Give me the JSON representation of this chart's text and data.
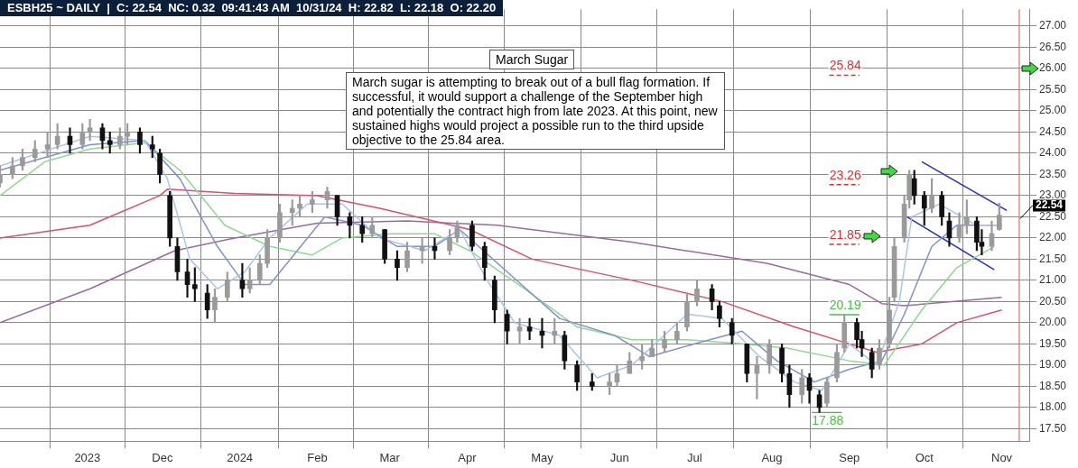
{
  "chart_data": {
    "type": "candlestick",
    "title": "March Sugar",
    "subtitle": "ESBH25 ~ DAILY  |  C: 22.54  NC: 0.32  09:41:43 AM  10/31/24  H: 22.82  L: 22.18  O: 22.20",
    "x": [
      "2023-09-27",
      "2023-10-02",
      "2023-10-06",
      "2023-10-11",
      "2023-10-16",
      "2023-10-20",
      "2023-10-25",
      "2023-10-30",
      "2023-11-02",
      "2023-11-07",
      "2023-11-10",
      "2023-11-14",
      "2023-11-17",
      "2023-11-22",
      "2023-11-27",
      "2023-11-30",
      "2023-12-04",
      "2023-12-07",
      "2023-12-11",
      "2023-12-14",
      "2023-12-19",
      "2023-12-22",
      "2023-12-27",
      "2024-01-02",
      "2024-01-05",
      "2024-01-09",
      "2024-01-12",
      "2024-01-17",
      "2024-01-22",
      "2024-01-25",
      "2024-01-30",
      "2024-02-05",
      "2024-02-09",
      "2024-02-14",
      "2024-02-19",
      "2024-02-23",
      "2024-02-28",
      "2024-03-04",
      "2024-03-08",
      "2024-03-14",
      "2024-03-19",
      "2024-03-25",
      "2024-03-28",
      "2024-04-03",
      "2024-04-08",
      "2024-04-12",
      "2024-04-17",
      "2024-04-22",
      "2024-04-26",
      "2024-05-01",
      "2024-05-06",
      "2024-05-10",
      "2024-05-15",
      "2024-05-21",
      "2024-05-28",
      "2024-05-31",
      "2024-06-05",
      "2024-06-10",
      "2024-06-14",
      "2024-06-19",
      "2024-06-24",
      "2024-06-28",
      "2024-07-02",
      "2024-07-08",
      "2024-07-11",
      "2024-07-16",
      "2024-07-22",
      "2024-07-26",
      "2024-07-31",
      "2024-08-05",
      "2024-08-08",
      "2024-08-13",
      "2024-08-16",
      "2024-08-20",
      "2024-08-23",
      "2024-08-27",
      "2024-08-30",
      "2024-09-04",
      "2024-09-06",
      "2024-09-10",
      "2024-09-13",
      "2024-09-17",
      "2024-09-19",
      "2024-09-23",
      "2024-09-25",
      "2024-09-27",
      "2024-10-01",
      "2024-10-04",
      "2024-10-08",
      "2024-10-11",
      "2024-10-15",
      "2024-10-18",
      "2024-10-22",
      "2024-10-24",
      "2024-10-28",
      "2024-10-31"
    ],
    "ohlc": [
      [
        23.3,
        23.7,
        23.2,
        23.5
      ],
      [
        23.5,
        23.9,
        23.4,
        23.7
      ],
      [
        23.7,
        24.1,
        23.6,
        23.9
      ],
      [
        23.9,
        24.3,
        23.8,
        24.1
      ],
      [
        24.1,
        24.5,
        23.9,
        24.2
      ],
      [
        24.2,
        24.7,
        24.1,
        24.4
      ],
      [
        24.4,
        24.6,
        24.0,
        24.2
      ],
      [
        24.2,
        24.7,
        24.1,
        24.5
      ],
      [
        24.5,
        24.8,
        24.3,
        24.6
      ],
      [
        24.6,
        24.7,
        24.1,
        24.3
      ],
      [
        24.3,
        24.5,
        24.0,
        24.2
      ],
      [
        24.2,
        24.6,
        24.1,
        24.4
      ],
      [
        24.4,
        24.7,
        24.2,
        24.5
      ],
      [
        24.5,
        24.6,
        24.0,
        24.2
      ],
      [
        24.2,
        24.4,
        23.9,
        24.1
      ],
      [
        24.0,
        24.1,
        23.3,
        23.5
      ],
      [
        23.0,
        23.1,
        21.8,
        22.0
      ],
      [
        21.8,
        22.0,
        21.0,
        21.2
      ],
      [
        21.2,
        21.5,
        20.6,
        20.9
      ],
      [
        20.9,
        21.3,
        20.5,
        20.8
      ],
      [
        20.7,
        20.9,
        20.1,
        20.3
      ],
      [
        20.3,
        20.8,
        20.0,
        20.6
      ],
      [
        20.6,
        21.2,
        20.5,
        21.0
      ],
      [
        21.0,
        21.4,
        20.6,
        20.8
      ],
      [
        20.8,
        21.3,
        20.7,
        21.0
      ],
      [
        21.0,
        21.6,
        20.9,
        21.4
      ],
      [
        21.4,
        22.2,
        21.3,
        22.0
      ],
      [
        22.0,
        22.8,
        21.9,
        22.6
      ],
      [
        22.6,
        22.9,
        22.3,
        22.7
      ],
      [
        22.7,
        23.0,
        22.5,
        22.8
      ],
      [
        22.8,
        23.1,
        22.6,
        22.9
      ],
      [
        22.9,
        23.2,
        22.7,
        23.1
      ],
      [
        23.0,
        23.0,
        22.3,
        22.5
      ],
      [
        22.5,
        22.6,
        22.0,
        22.3
      ],
      [
        22.3,
        22.5,
        21.9,
        22.1
      ],
      [
        22.1,
        22.5,
        22.0,
        22.3
      ],
      [
        22.2,
        22.2,
        21.4,
        21.5
      ],
      [
        21.5,
        21.7,
        21.0,
        21.3
      ],
      [
        21.3,
        21.9,
        21.2,
        21.7
      ],
      [
        21.7,
        22.0,
        21.4,
        21.8
      ],
      [
        21.8,
        22.0,
        21.5,
        21.7
      ],
      [
        21.7,
        22.2,
        21.6,
        22.0
      ],
      [
        22.0,
        22.4,
        21.9,
        22.3
      ],
      [
        22.3,
        22.4,
        21.7,
        21.8
      ],
      [
        21.8,
        21.9,
        21.0,
        21.3
      ],
      [
        21.0,
        21.1,
        20.0,
        20.3
      ],
      [
        20.2,
        20.3,
        19.5,
        19.8
      ],
      [
        19.8,
        20.1,
        19.5,
        19.9
      ],
      [
        19.9,
        20.1,
        19.6,
        19.8
      ],
      [
        19.8,
        20.1,
        19.4,
        19.7
      ],
      [
        19.7,
        20.1,
        19.5,
        19.8
      ],
      [
        19.7,
        19.8,
        18.9,
        19.1
      ],
      [
        19.0,
        19.1,
        18.4,
        18.6
      ],
      [
        18.6,
        18.8,
        18.4,
        18.5
      ],
      [
        18.5,
        18.8,
        18.3,
        18.6
      ],
      [
        18.6,
        19.0,
        18.5,
        18.8
      ],
      [
        18.8,
        19.3,
        18.8,
        19.1
      ],
      [
        19.1,
        19.5,
        18.9,
        19.2
      ],
      [
        19.2,
        19.6,
        19.2,
        19.4
      ],
      [
        19.4,
        19.8,
        19.3,
        19.6
      ],
      [
        19.6,
        20.0,
        19.5,
        19.8
      ],
      [
        19.9,
        20.7,
        19.8,
        20.5
      ],
      [
        20.5,
        21.0,
        20.4,
        20.8
      ],
      [
        20.8,
        20.9,
        20.3,
        20.5
      ],
      [
        20.4,
        20.5,
        19.9,
        20.1
      ],
      [
        20.0,
        20.1,
        19.5,
        19.7
      ],
      [
        19.5,
        19.5,
        18.6,
        18.8
      ],
      [
        18.8,
        19.2,
        18.2,
        19.0
      ],
      [
        19.0,
        19.6,
        18.8,
        19.5
      ],
      [
        19.4,
        19.5,
        18.6,
        18.8
      ],
      [
        18.8,
        19.0,
        18.0,
        18.3
      ],
      [
        18.3,
        18.9,
        18.1,
        18.7
      ],
      [
        18.7,
        18.8,
        18.1,
        18.4
      ],
      [
        18.3,
        18.4,
        17.88,
        18.0
      ],
      [
        18.1,
        18.7,
        18.0,
        18.6
      ],
      [
        18.7,
        19.5,
        18.6,
        19.3
      ],
      [
        19.4,
        20.19,
        19.3,
        20.0
      ],
      [
        20.0,
        20.1,
        19.4,
        19.6
      ],
      [
        19.6,
        19.8,
        19.2,
        19.4
      ],
      [
        19.3,
        19.4,
        18.7,
        18.9
      ],
      [
        19.0,
        19.6,
        18.9,
        19.4
      ],
      [
        19.5,
        20.6,
        19.4,
        20.3
      ],
      [
        20.6,
        22.0,
        20.5,
        21.8
      ],
      [
        22.0,
        23.0,
        21.9,
        22.8
      ],
      [
        22.9,
        23.6,
        22.7,
        23.5
      ],
      [
        23.4,
        23.6,
        22.8,
        23.0
      ],
      [
        23.0,
        23.1,
        22.3,
        22.7
      ],
      [
        22.7,
        23.4,
        22.6,
        23.0
      ],
      [
        23.0,
        23.1,
        22.3,
        22.5
      ],
      [
        22.4,
        22.6,
        21.8,
        22.0
      ],
      [
        22.0,
        22.6,
        21.9,
        22.3
      ],
      [
        22.3,
        22.9,
        22.1,
        22.5
      ],
      [
        22.4,
        22.5,
        21.7,
        21.9
      ],
      [
        21.9,
        22.2,
        21.6,
        21.8
      ],
      [
        21.8,
        22.4,
        21.7,
        22.1
      ],
      [
        22.2,
        22.82,
        22.18,
        22.54
      ]
    ],
    "colors": [
      "#9a9a9a",
      "#9a9a9a",
      "#9a9a9a",
      "#9a9a9a",
      "#9a9a9a",
      "#9a9a9a",
      "#111111",
      "#9a9a9a",
      "#9a9a9a",
      "#111111",
      "#111111",
      "#9a9a9a",
      "#9a9a9a",
      "#111111",
      "#111111",
      "#111111",
      "#111111",
      "#111111",
      "#111111",
      "#111111",
      "#111111",
      "#9a9a9a",
      "#9a9a9a",
      "#111111",
      "#9a9a9a",
      "#9a9a9a",
      "#9a9a9a",
      "#9a9a9a",
      "#9a9a9a",
      "#9a9a9a",
      "#9a9a9a",
      "#9a9a9a",
      "#111111",
      "#111111",
      "#111111",
      "#9a9a9a",
      "#111111",
      "#111111",
      "#9a9a9a",
      "#9a9a9a",
      "#111111",
      "#9a9a9a",
      "#9a9a9a",
      "#111111",
      "#111111",
      "#111111",
      "#111111",
      "#9a9a9a",
      "#111111",
      "#111111",
      "#9a9a9a",
      "#111111",
      "#111111",
      "#111111",
      "#9a9a9a",
      "#9a9a9a",
      "#9a9a9a",
      "#9a9a9a",
      "#9a9a9a",
      "#9a9a9a",
      "#9a9a9a",
      "#9a9a9a",
      "#9a9a9a",
      "#111111",
      "#111111",
      "#111111",
      "#111111",
      "#9a9a9a",
      "#9a9a9a",
      "#111111",
      "#111111",
      "#9a9a9a",
      "#111111",
      "#111111",
      "#9a9a9a",
      "#9a9a9a",
      "#9a9a9a",
      "#111111",
      "#111111",
      "#111111",
      "#9a9a9a",
      "#9a9a9a",
      "#9a9a9a",
      "#9a9a9a",
      "#9a9a9a",
      "#111111",
      "#111111",
      "#9a9a9a",
      "#111111",
      "#111111",
      "#9a9a9a",
      "#9a9a9a",
      "#111111",
      "#111111",
      "#9a9a9a",
      "#9a9a9a"
    ],
    "series": [
      {
        "type": "line",
        "color": "#a9c4e8",
        "x": [
          "2023-09-27",
          "2023-11-02",
          "2023-11-24",
          "2023-12-03",
          "2023-12-12",
          "2023-12-23",
          "2024-01-03",
          "2024-01-13",
          "2024-01-28",
          "2024-02-11",
          "2024-02-26",
          "2024-03-15",
          "2024-03-29",
          "2024-04-09",
          "2024-04-20",
          "2024-05-08",
          "2024-05-23",
          "2024-06-06",
          "2024-06-28",
          "2024-07-12",
          "2024-07-27",
          "2024-08-10",
          "2024-08-21",
          "2024-09-01",
          "2024-09-12",
          "2024-09-21",
          "2024-09-26",
          "2024-10-07",
          "2024-10-22",
          "2024-11-01"
        ],
        "values": [
          23.7,
          24.4,
          24.3,
          23.4,
          21.5,
          20.8,
          21.2,
          22.0,
          22.8,
          22.8,
          22.0,
          21.7,
          22.2,
          21.0,
          20.0,
          19.7,
          18.7,
          19.0,
          20.2,
          20.1,
          19.2,
          18.6,
          18.4,
          19.5,
          19.0,
          20.5,
          22.5,
          22.8,
          22.3,
          22.3
        ]
      },
      {
        "type": "line",
        "color": "#8090d0",
        "x": [
          "2023-09-27",
          "2023-11-02",
          "2023-11-24",
          "2023-12-08",
          "2023-12-23",
          "2024-01-03",
          "2024-01-13",
          "2024-01-24",
          "2024-02-04",
          "2024-02-19",
          "2024-03-04",
          "2024-03-19",
          "2024-03-29",
          "2024-04-17",
          "2024-05-08",
          "2024-05-30",
          "2024-06-13",
          "2024-07-01",
          "2024-07-20",
          "2024-08-03",
          "2024-08-18",
          "2024-09-01",
          "2024-09-14",
          "2024-09-23",
          "2024-10-04",
          "2024-10-14",
          "2024-11-01"
        ],
        "values": [
          23.6,
          24.2,
          24.3,
          23.4,
          21.8,
          20.9,
          20.9,
          21.7,
          22.5,
          22.3,
          21.8,
          21.8,
          22.2,
          21.2,
          20.1,
          19.7,
          19.2,
          19.5,
          19.8,
          19.1,
          18.6,
          18.9,
          19.1,
          20.2,
          21.8,
          22.3,
          22.3
        ]
      },
      {
        "type": "line",
        "color": "#90d890",
        "x": [
          "2023-09-27",
          "2023-10-15",
          "2023-11-02",
          "2023-11-24",
          "2023-12-08",
          "2023-12-26",
          "2024-01-13",
          "2024-01-30",
          "2024-02-11",
          "2024-03-01",
          "2024-03-19",
          "2024-04-02",
          "2024-04-24",
          "2024-05-15",
          "2024-06-06",
          "2024-06-28",
          "2024-07-20",
          "2024-08-07",
          "2024-09-01",
          "2024-09-15",
          "2024-09-30",
          "2024-10-14",
          "2024-10-29"
        ],
        "values": [
          23.0,
          23.8,
          24.1,
          24.25,
          23.6,
          22.3,
          21.8,
          21.6,
          22.0,
          22.1,
          22.1,
          21.7,
          20.8,
          19.9,
          19.6,
          19.6,
          19.5,
          19.4,
          19.1,
          19.0,
          20.3,
          21.3,
          21.8
        ]
      },
      {
        "type": "line",
        "color": "#d9506a",
        "x": [
          "2023-09-27",
          "2023-11-02",
          "2023-11-30",
          "2023-12-03",
          "2023-12-30",
          "2024-02-01",
          "2024-02-26",
          "2024-04-02",
          "2024-04-27",
          "2024-06-06",
          "2024-07-12",
          "2024-08-10",
          "2024-09-01",
          "2024-09-12",
          "2024-09-30",
          "2024-10-14",
          "2024-11-01"
        ],
        "values": [
          22.0,
          22.3,
          23.0,
          23.15,
          23.05,
          23.0,
          22.7,
          22.2,
          21.5,
          21.0,
          20.5,
          19.9,
          19.5,
          19.3,
          19.5,
          20.0,
          20.3
        ]
      },
      {
        "type": "line",
        "color": "#9a6a9e",
        "x": [
          "2023-09-27",
          "2023-11-02",
          "2023-12-06",
          "2023-12-30",
          "2024-02-01",
          "2024-03-08",
          "2024-04-13",
          "2024-06-06",
          "2024-07-30",
          "2024-09-01",
          "2024-09-14",
          "2024-09-23",
          "2024-11-01"
        ],
        "values": [
          20.0,
          20.8,
          21.7,
          22.0,
          22.35,
          22.4,
          22.3,
          21.9,
          21.4,
          20.9,
          20.45,
          20.4,
          20.6
        ]
      },
      {
        "type": "line",
        "color": "#2b2bd0",
        "x": [
          "2024-09-30",
          "2024-11-03"
        ],
        "values": [
          23.8,
          22.65
        ]
      },
      {
        "type": "line",
        "color": "#2b2bd0",
        "x": [
          "2024-09-24",
          "2024-10-29"
        ],
        "values": [
          22.5,
          21.25
        ]
      },
      {
        "type": "line",
        "color": "#e03030",
        "line_style": "dashed",
        "x": [
          "2024-08-24",
          "2024-09-05"
        ],
        "values": [
          25.84,
          25.84
        ],
        "value_labels": [
          "25.84",
          null
        ]
      },
      {
        "type": "line",
        "color": "#e03030",
        "line_style": "dashed",
        "x": [
          "2024-08-24",
          "2024-09-05"
        ],
        "values": [
          23.26,
          23.26
        ],
        "value_labels": [
          "23.26",
          null
        ]
      },
      {
        "type": "line",
        "color": "#e03030",
        "line_style": "dashed",
        "x": [
          "2024-08-24",
          "2024-09-05"
        ],
        "values": [
          21.85,
          21.85
        ],
        "value_labels": [
          "21.85",
          null
        ]
      },
      {
        "type": "line",
        "color": "#44c044",
        "x": [
          "2024-08-24",
          "2024-09-05"
        ],
        "values": [
          20.19,
          20.19
        ],
        "value_labels": [
          "20.19",
          null
        ]
      },
      {
        "type": "line",
        "color": "#44c044",
        "x": [
          "2024-08-17",
          "2024-08-29"
        ],
        "values": [
          17.88,
          17.88
        ],
        "value_labels": [
          "17.88",
          null
        ]
      }
    ],
    "xlim": [
      "2023-09-27",
      "2024-11-12"
    ],
    "xticks": [
      {
        "value": "2023-11-01",
        "label": "2023"
      },
      {
        "value": "2023-12-01",
        "label": "Dec"
      },
      {
        "value": "2024-01-01",
        "label": "2024"
      },
      {
        "value": "2024-02-01",
        "label": "Feb"
      },
      {
        "value": "2024-03-01",
        "label": "Mar"
      },
      {
        "value": "2024-04-01",
        "label": "Apr"
      },
      {
        "value": "2024-05-01",
        "label": "May"
      },
      {
        "value": "2024-06-01",
        "label": "Jun"
      },
      {
        "value": "2024-07-01",
        "label": "Jul"
      },
      {
        "value": "2024-08-01",
        "label": "Aug"
      },
      {
        "value": "2024-09-01",
        "label": "Sep"
      },
      {
        "value": "2024-10-01",
        "label": "Oct"
      },
      {
        "value": "2024-11-01",
        "label": "Nov"
      }
    ],
    "ylim": [
      17.2,
      27.4
    ],
    "yticks": [
      {
        "value": 17.5,
        "label": "17.50"
      },
      {
        "value": 18,
        "label": "18.00"
      },
      {
        "value": 18.5,
        "label": "18.50"
      },
      {
        "value": 19,
        "label": "19.00"
      },
      {
        "value": 19.5,
        "label": "19.50"
      },
      {
        "value": 20,
        "label": "20.00"
      },
      {
        "value": 20.5,
        "label": "20.50"
      },
      {
        "value": 21,
        "label": "21.00"
      },
      {
        "value": 21.5,
        "label": "21.50"
      },
      {
        "value": 22,
        "label": "22.00"
      },
      {
        "value": 22.5,
        "label": "22.50"
      },
      {
        "value": 23,
        "label": "23.00"
      },
      {
        "value": 23.5,
        "label": "23.50"
      },
      {
        "value": 24,
        "label": "24.00"
      },
      {
        "value": 24.5,
        "label": "24.50"
      },
      {
        "value": 25,
        "label": "25.00"
      },
      {
        "value": 25.5,
        "label": "25.50"
      },
      {
        "value": 26,
        "label": "26.00"
      },
      {
        "value": 26.5,
        "label": "26.50"
      },
      {
        "value": 27,
        "label": "27.00"
      }
    ],
    "ref_lines": [
      {
        "axis": "x",
        "value": "2024-11-08",
        "color": "#e07070"
      }
    ],
    "annotations": [
      "March sugar is attempting to break out of a bull flag formation.  If successful, it would support a challenge of the September high and potentially the contract high from late 2023.  At this point, new sustained highs would project a possible run to the third upside objective to the 25.84 area.",
      "22.54"
    ],
    "grid": true,
    "legend": false
  }
}
